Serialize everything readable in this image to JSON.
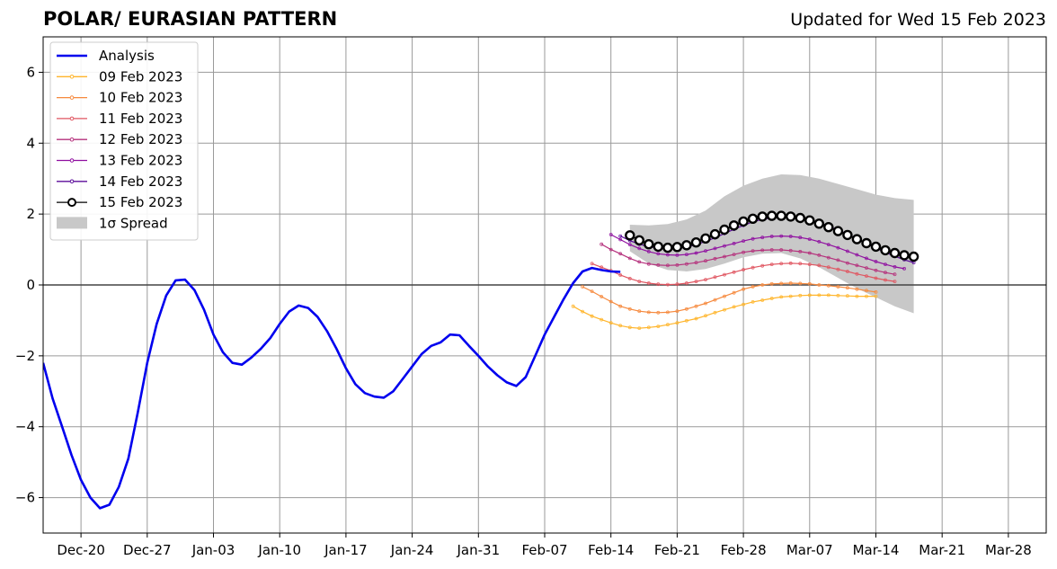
{
  "header": {
    "title": "POLAR/ EURASIAN  PATTERN",
    "updated": "Updated for Wed 15 Feb 2023"
  },
  "chart_data": {
    "type": "line",
    "title": "POLAR/ EURASIAN  PATTERN",
    "subtitle": "Updated for Wed 15 Feb 2023",
    "xlabel": "",
    "ylabel": "",
    "xlim": [
      "2022-12-16",
      "2023-04-01"
    ],
    "ylim": [
      -7,
      7
    ],
    "grid": true,
    "legend": "top-left",
    "xticks": [
      {
        "date": "2022-12-20",
        "label": "Dec-20"
      },
      {
        "date": "2022-12-27",
        "label": "Dec-27"
      },
      {
        "date": "2023-01-03",
        "label": "Jan-03"
      },
      {
        "date": "2023-01-10",
        "label": "Jan-10"
      },
      {
        "date": "2023-01-17",
        "label": "Jan-17"
      },
      {
        "date": "2023-01-24",
        "label": "Jan-24"
      },
      {
        "date": "2023-01-31",
        "label": "Jan-31"
      },
      {
        "date": "2023-02-07",
        "label": "Feb-07"
      },
      {
        "date": "2023-02-14",
        "label": "Feb-14"
      },
      {
        "date": "2023-02-21",
        "label": "Feb-21"
      },
      {
        "date": "2023-02-28",
        "label": "Feb-28"
      },
      {
        "date": "2023-03-07",
        "label": "Mar-07"
      },
      {
        "date": "2023-03-14",
        "label": "Mar-14"
      },
      {
        "date": "2023-03-21",
        "label": "Mar-21"
      },
      {
        "date": "2023-03-28",
        "label": "Mar-28"
      }
    ],
    "yticks": [
      {
        "value": -6,
        "label": "−6"
      },
      {
        "value": -4,
        "label": "−4"
      },
      {
        "value": -2,
        "label": "−2"
      },
      {
        "value": 0,
        "label": "0"
      },
      {
        "value": 2,
        "label": "2"
      },
      {
        "value": 4,
        "label": "4"
      },
      {
        "value": 6,
        "label": "6"
      }
    ],
    "analysis": {
      "name": "Analysis",
      "color": "#0000ee",
      "x": [
        "2022-12-16",
        "2022-12-17",
        "2022-12-18",
        "2022-12-19",
        "2022-12-20",
        "2022-12-21",
        "2022-12-22",
        "2022-12-23",
        "2022-12-24",
        "2022-12-25",
        "2022-12-26",
        "2022-12-27",
        "2022-12-28",
        "2022-12-29",
        "2022-12-30",
        "2022-12-31",
        "2023-01-01",
        "2023-01-02",
        "2023-01-03",
        "2023-01-04",
        "2023-01-05",
        "2023-01-06",
        "2023-01-07",
        "2023-01-08",
        "2023-01-09",
        "2023-01-10",
        "2023-01-11",
        "2023-01-12",
        "2023-01-13",
        "2023-01-14",
        "2023-01-15",
        "2023-01-16",
        "2023-01-17",
        "2023-01-18",
        "2023-01-19",
        "2023-01-20",
        "2023-01-21",
        "2023-01-22",
        "2023-01-23",
        "2023-01-24",
        "2023-01-25",
        "2023-01-26",
        "2023-01-27",
        "2023-01-28",
        "2023-01-29",
        "2023-01-30",
        "2023-01-31",
        "2023-02-01",
        "2023-02-02",
        "2023-02-03",
        "2023-02-04",
        "2023-02-05",
        "2023-02-06",
        "2023-02-07",
        "2023-02-08",
        "2023-02-09",
        "2023-02-10",
        "2023-02-11",
        "2023-02-12",
        "2023-02-13",
        "2023-02-14",
        "2023-02-15"
      ],
      "values": [
        -2.2,
        -3.2,
        -4.0,
        -4.8,
        -5.5,
        -6.0,
        -6.3,
        -6.2,
        -5.7,
        -4.9,
        -3.6,
        -2.2,
        -1.1,
        -0.3,
        0.13,
        0.15,
        -0.15,
        -0.7,
        -1.4,
        -1.9,
        -2.2,
        -2.25,
        -2.05,
        -1.8,
        -1.5,
        -1.1,
        -0.75,
        -0.58,
        -0.65,
        -0.9,
        -1.3,
        -1.8,
        -2.35,
        -2.8,
        -3.05,
        -3.15,
        -3.18,
        -3.0,
        -2.65,
        -2.3,
        -1.95,
        -1.72,
        -1.62,
        -1.4,
        -1.42,
        -1.72,
        -2.0,
        -2.3,
        -2.55,
        -2.75,
        -2.85,
        -2.6,
        -2.0,
        -1.4,
        -0.9,
        -0.4,
        0.05,
        0.38,
        0.48,
        0.42,
        0.38,
        0.37
      ]
    },
    "spread": {
      "name": "1σ Spread",
      "color": "#c8c8c8",
      "x": [
        "2023-02-16",
        "2023-02-18",
        "2023-02-20",
        "2023-02-22",
        "2023-02-24",
        "2023-02-26",
        "2023-02-28",
        "2023-03-02",
        "2023-03-04",
        "2023-03-06",
        "2023-03-08",
        "2023-03-10",
        "2023-03-12",
        "2023-03-14",
        "2023-03-16",
        "2023-03-18"
      ],
      "upper": [
        1.7,
        1.68,
        1.72,
        1.85,
        2.1,
        2.5,
        2.8,
        3.0,
        3.12,
        3.1,
        3.0,
        2.85,
        2.7,
        2.55,
        2.45,
        2.4
      ],
      "lower": [
        0.95,
        0.6,
        0.42,
        0.38,
        0.45,
        0.6,
        0.78,
        0.88,
        0.9,
        0.75,
        0.5,
        0.2,
        -0.1,
        -0.35,
        -0.6,
        -0.8
      ]
    },
    "forecasts": [
      {
        "name": "09 Feb 2023",
        "color": "#ffb52b",
        "start": "2023-02-10",
        "values": [
          -0.6,
          -0.75,
          -0.88,
          -0.98,
          -1.07,
          -1.15,
          -1.2,
          -1.22,
          -1.2,
          -1.17,
          -1.12,
          -1.07,
          -1.01,
          -0.95,
          -0.87,
          -0.78,
          -0.7,
          -0.62,
          -0.55,
          -0.48,
          -0.43,
          -0.38,
          -0.34,
          -0.32,
          -0.3,
          -0.29,
          -0.29,
          -0.29,
          -0.3,
          -0.31,
          -0.32,
          -0.32,
          -0.32
        ]
      },
      {
        "name": "10 Feb 2023",
        "color": "#f6893d",
        "start": "2023-02-11",
        "values": [
          -0.05,
          -0.18,
          -0.33,
          -0.47,
          -0.6,
          -0.68,
          -0.74,
          -0.77,
          -0.78,
          -0.77,
          -0.74,
          -0.68,
          -0.6,
          -0.52,
          -0.42,
          -0.32,
          -0.22,
          -0.12,
          -0.05,
          0.0,
          0.03,
          0.04,
          0.05,
          0.04,
          0.03,
          0.0,
          -0.02,
          -0.05,
          -0.08,
          -0.12,
          -0.16,
          -0.2
        ]
      },
      {
        "name": "11 Feb 2023",
        "color": "#e05560",
        "start": "2023-02-12",
        "values": [
          0.6,
          0.5,
          0.4,
          0.28,
          0.18,
          0.1,
          0.05,
          0.02,
          0.01,
          0.02,
          0.05,
          0.1,
          0.15,
          0.22,
          0.29,
          0.36,
          0.43,
          0.49,
          0.54,
          0.58,
          0.6,
          0.61,
          0.6,
          0.58,
          0.55,
          0.5,
          0.44,
          0.38,
          0.31,
          0.25,
          0.19,
          0.14,
          0.1
        ]
      },
      {
        "name": "12 Feb 2023",
        "color": "#b5307c",
        "start": "2023-02-13",
        "values": [
          1.15,
          1.0,
          0.88,
          0.75,
          0.65,
          0.59,
          0.56,
          0.55,
          0.56,
          0.59,
          0.63,
          0.68,
          0.74,
          0.8,
          0.86,
          0.92,
          0.96,
          0.98,
          0.99,
          0.99,
          0.97,
          0.94,
          0.9,
          0.84,
          0.77,
          0.7,
          0.62,
          0.55,
          0.48,
          0.41,
          0.35,
          0.3
        ]
      },
      {
        "name": "13 Feb 2023",
        "color": "#8f0fa0",
        "start": "2023-02-14",
        "values": [
          1.42,
          1.28,
          1.14,
          1.03,
          0.94,
          0.88,
          0.85,
          0.84,
          0.86,
          0.9,
          0.96,
          1.03,
          1.1,
          1.17,
          1.24,
          1.3,
          1.34,
          1.37,
          1.38,
          1.37,
          1.34,
          1.29,
          1.22,
          1.14,
          1.05,
          0.95,
          0.85,
          0.75,
          0.66,
          0.58,
          0.51,
          0.46
        ]
      },
      {
        "name": "14 Feb 2023",
        "color": "#5b0c9a",
        "start": "2023-02-15",
        "values": [
          1.38,
          1.25,
          1.15,
          1.08,
          1.04,
          1.02,
          1.03,
          1.07,
          1.14,
          1.23,
          1.33,
          1.45,
          1.57,
          1.68,
          1.78,
          1.85,
          1.9,
          1.92,
          1.92,
          1.89,
          1.84,
          1.76,
          1.66,
          1.55,
          1.43,
          1.3,
          1.17,
          1.04,
          0.92,
          0.81,
          0.71,
          0.63
        ]
      },
      {
        "name": "15 Feb 2023",
        "color": "#000000",
        "start": "2023-02-16",
        "values": [
          1.4,
          1.26,
          1.15,
          1.08,
          1.05,
          1.07,
          1.12,
          1.2,
          1.31,
          1.43,
          1.56,
          1.68,
          1.79,
          1.87,
          1.93,
          1.95,
          1.95,
          1.93,
          1.89,
          1.82,
          1.73,
          1.63,
          1.52,
          1.41,
          1.29,
          1.18,
          1.08,
          0.98,
          0.9,
          0.84,
          0.8
        ]
      }
    ]
  }
}
